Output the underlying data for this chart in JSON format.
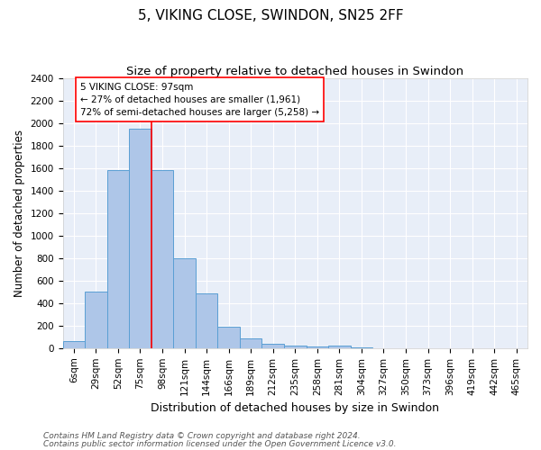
{
  "title": "5, VIKING CLOSE, SWINDON, SN25 2FF",
  "subtitle": "Size of property relative to detached houses in Swindon",
  "xlabel": "Distribution of detached houses by size in Swindon",
  "ylabel": "Number of detached properties",
  "footnote1": "Contains HM Land Registry data © Crown copyright and database right 2024.",
  "footnote2": "Contains public sector information licensed under the Open Government Licence v3.0.",
  "categories": [
    "6sqm",
    "29sqm",
    "52sqm",
    "75sqm",
    "98sqm",
    "121sqm",
    "144sqm",
    "166sqm",
    "189sqm",
    "212sqm",
    "235sqm",
    "258sqm",
    "281sqm",
    "304sqm",
    "327sqm",
    "350sqm",
    "373sqm",
    "396sqm",
    "419sqm",
    "442sqm",
    "465sqm"
  ],
  "values": [
    60,
    500,
    1580,
    1950,
    1580,
    800,
    490,
    190,
    90,
    35,
    25,
    15,
    20,
    5,
    0,
    0,
    0,
    0,
    0,
    0,
    0
  ],
  "bar_color": "#aec6e8",
  "bar_edge_color": "#5a9fd4",
  "ylim": [
    0,
    2400
  ],
  "yticks": [
    0,
    200,
    400,
    600,
    800,
    1000,
    1200,
    1400,
    1600,
    1800,
    2000,
    2200,
    2400
  ],
  "annotation_line1": "5 VIKING CLOSE: 97sqm",
  "annotation_line2": "← 27% of detached houses are smaller (1,961)",
  "annotation_line3": "72% of semi-detached houses are larger (5,258) →",
  "annotation_box_color": "white",
  "annotation_box_edge_color": "red",
  "vline_color": "red",
  "vline_x_index": 3.5,
  "title_fontsize": 11,
  "subtitle_fontsize": 9.5,
  "xlabel_fontsize": 9,
  "ylabel_fontsize": 8.5,
  "tick_fontsize": 7.5,
  "annotation_fontsize": 7.5,
  "footnote_fontsize": 6.5,
  "plot_bg_color": "#e8eef8",
  "fig_bg_color": "#ffffff",
  "grid_color": "#ffffff"
}
